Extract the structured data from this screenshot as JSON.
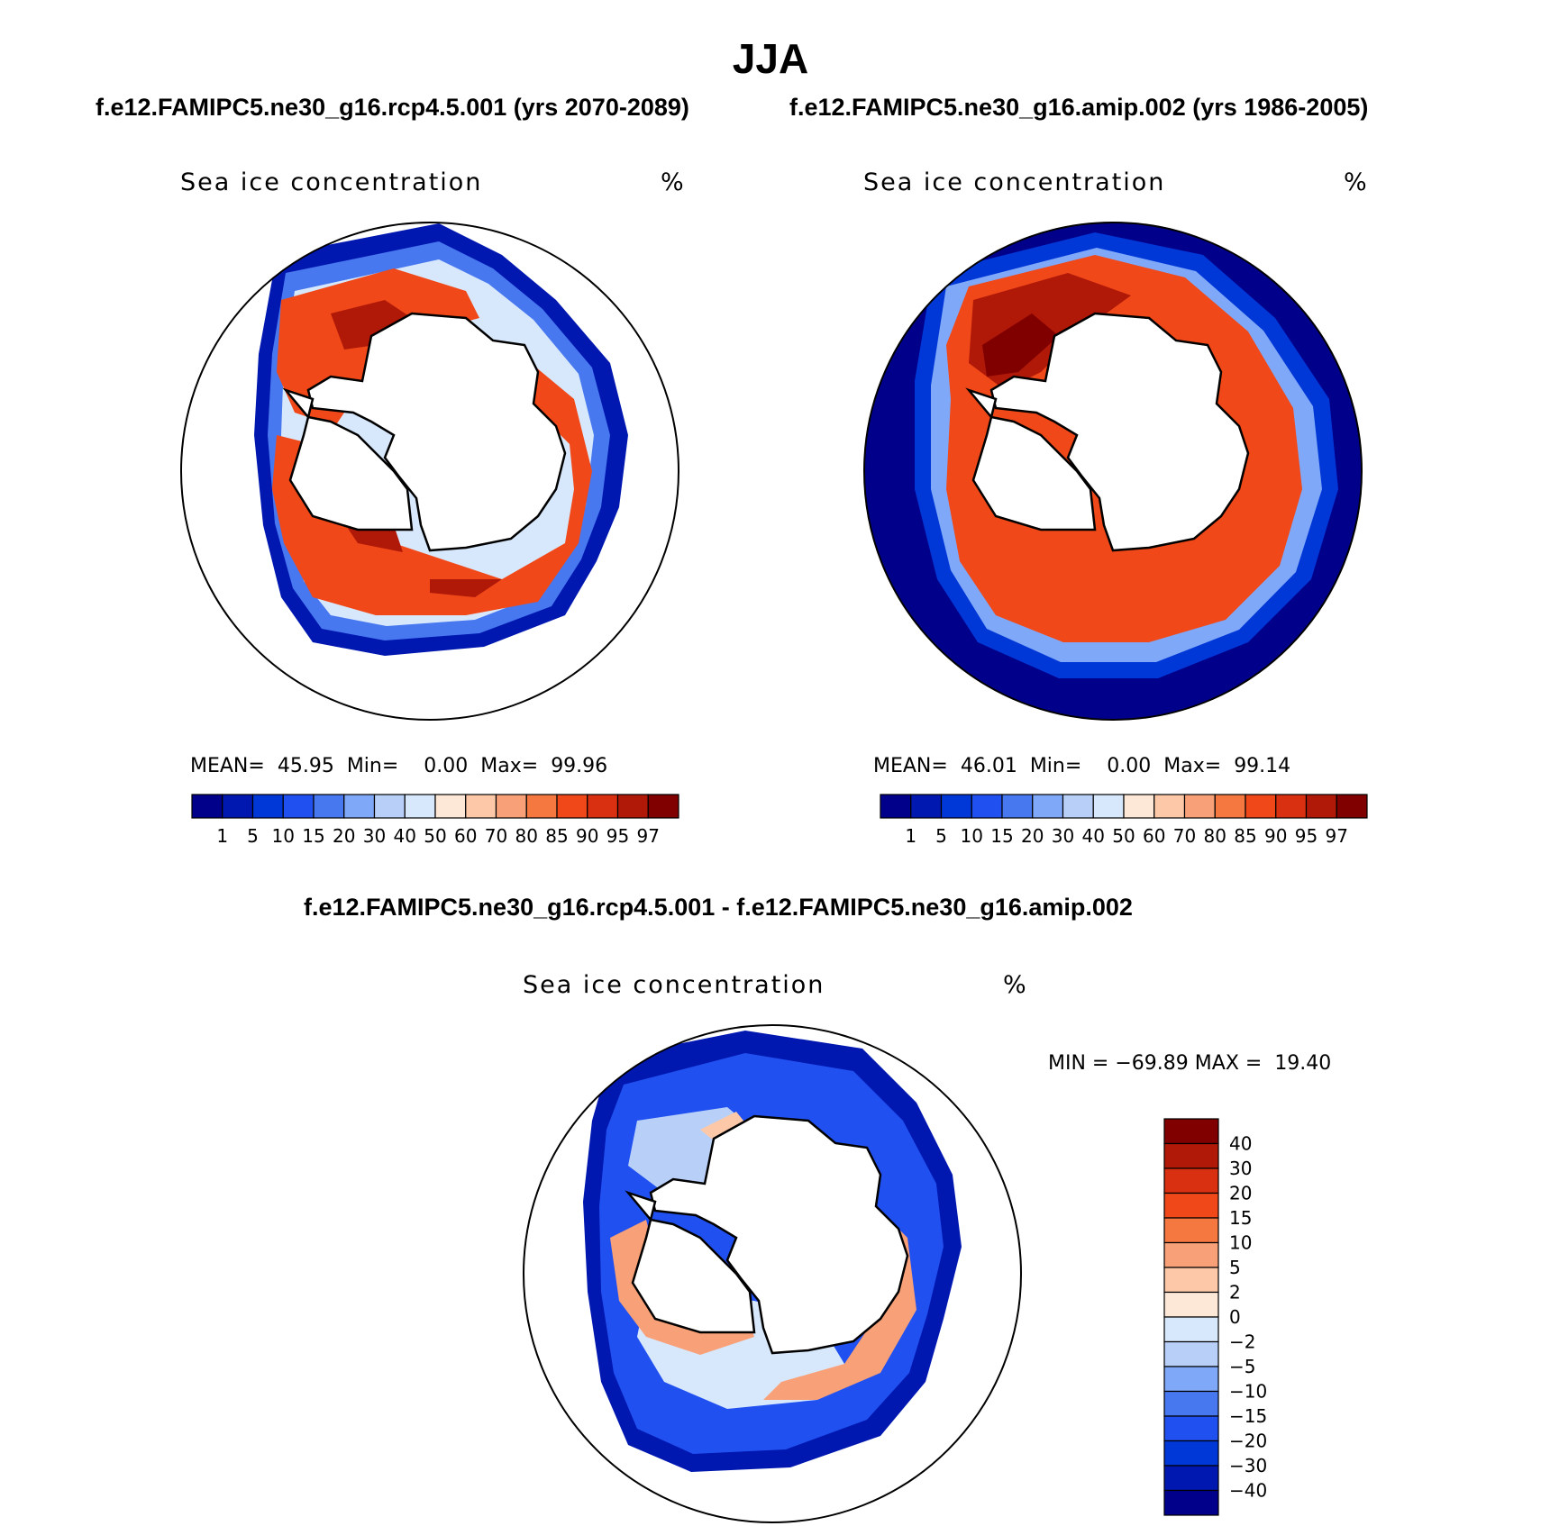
{
  "title": "JJA",
  "case_labels": {
    "left": "f.e12.FAMIPC5.ne30_g16.rcp4.5.001 (yrs 2070-2089)",
    "right": "f.e12.FAMIPC5.ne30_g16.amip.002 (yrs 1986-2005)",
    "diff": "f.e12.FAMIPC5.ne30_g16.rcp4.5.001 - f.e12.FAMIPC5.ne30_g16.amip.002"
  },
  "panels": [
    {
      "name": "Sea ice concentration",
      "units": "%",
      "stats": {
        "mean_label": "MEAN=",
        "mean": "45.95",
        "min_label": "Min=",
        "min": "0.00",
        "max_label": "Max=",
        "max": "99.96"
      }
    },
    {
      "name": "Sea ice concentration",
      "units": "%",
      "stats": {
        "mean_label": "MEAN=",
        "mean": "46.01",
        "min_label": "Min=",
        "min": "0.00",
        "max_label": "Max=",
        "max": "99.14"
      }
    },
    {
      "name": "Sea ice concentration",
      "units": "%",
      "stats": {
        "min_label": "MIN =",
        "min": "−69.89",
        "max_label": "MAX =",
        "max": "19.40"
      }
    }
  ],
  "colorbar_abs": {
    "labels": [
      "1",
      "5",
      "10",
      "15",
      "20",
      "30",
      "40",
      "50",
      "60",
      "70",
      "80",
      "85",
      "90",
      "95",
      "97"
    ],
    "colors": [
      "#00008b",
      "#0018b0",
      "#0038d8",
      "#2050f0",
      "#4878f0",
      "#80a8f8",
      "#b8d0f8",
      "#d8e8fc",
      "#fde8d8",
      "#fcc8a8",
      "#f8a078",
      "#f47840",
      "#f04818",
      "#d83010",
      "#b01808",
      "#800000"
    ]
  },
  "colorbar_diff": {
    "labels": [
      "40",
      "30",
      "20",
      "15",
      "10",
      "5",
      "2",
      "0",
      "−2",
      "−5",
      "−10",
      "−15",
      "−20",
      "−30",
      "−40"
    ],
    "colors": [
      "#800000",
      "#b01808",
      "#d83010",
      "#f04818",
      "#f47840",
      "#f8a078",
      "#fcc8a8",
      "#fde8d8",
      "#d8e8fc",
      "#b8d0f8",
      "#80a8f8",
      "#4878f0",
      "#2050f0",
      "#0038d8",
      "#0018b0",
      "#00008b"
    ]
  }
}
